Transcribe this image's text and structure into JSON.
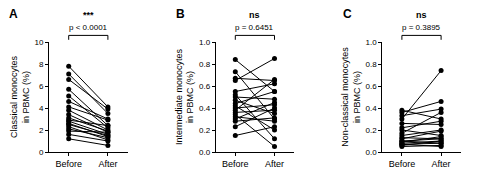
{
  "chart_data": [
    {
      "type": "paired",
      "panel_label": "A",
      "significance": "***",
      "p_text": "p < 0.0001",
      "ylabel": [
        "Classical monocytes",
        "in PBMC (%)"
      ],
      "categories": [
        "Before",
        "After"
      ],
      "color": "#000000",
      "marker": "circle",
      "ylim": [
        0,
        10
      ],
      "yticks": [
        0,
        2,
        4,
        6,
        8,
        10
      ],
      "values": [
        [
          7.8,
          4.1
        ],
        [
          7.1,
          3.5
        ],
        [
          6.6,
          3.9
        ],
        [
          5.7,
          2.4
        ],
        [
          5.1,
          2.2
        ],
        [
          4.6,
          3.0
        ],
        [
          4.1,
          2.9
        ],
        [
          3.8,
          2.0
        ],
        [
          3.4,
          1.8
        ],
        [
          3.1,
          1.9
        ],
        [
          2.9,
          2.4
        ],
        [
          2.8,
          1.6
        ],
        [
          2.6,
          1.4
        ],
        [
          2.5,
          1.5
        ],
        [
          2.3,
          1.1
        ],
        [
          2.1,
          1.3
        ],
        [
          1.9,
          1.8
        ],
        [
          1.6,
          1.0
        ],
        [
          1.2,
          0.6
        ]
      ]
    },
    {
      "type": "paired",
      "panel_label": "B",
      "significance": "ns",
      "p_text": "p = 0.6451",
      "ylabel": [
        "Intermediate monocytes",
        "in PBMC (%)"
      ],
      "categories": [
        "Before",
        "After"
      ],
      "color": "#000000",
      "marker": "circle",
      "ylim": [
        0,
        1.0
      ],
      "yticks": [
        {
          "value": 0,
          "label": "0.0"
        },
        0.2,
        0.4,
        0.6,
        0.8,
        {
          "value": 1,
          "label": "1.0"
        }
      ],
      "values": [
        [
          0.84,
          0.55
        ],
        [
          0.73,
          0.3
        ],
        [
          0.67,
          0.65
        ],
        [
          0.65,
          0.85
        ],
        [
          0.55,
          0.62
        ],
        [
          0.52,
          0.12
        ],
        [
          0.5,
          0.48
        ],
        [
          0.47,
          0.35
        ],
        [
          0.44,
          0.55
        ],
        [
          0.42,
          0.2
        ],
        [
          0.4,
          0.43
        ],
        [
          0.38,
          0.66
        ],
        [
          0.36,
          0.38
        ],
        [
          0.34,
          0.05
        ],
        [
          0.32,
          0.28
        ],
        [
          0.3,
          0.45
        ],
        [
          0.28,
          0.31
        ],
        [
          0.23,
          0.4
        ],
        [
          0.15,
          0.23
        ]
      ]
    },
    {
      "type": "paired",
      "panel_label": "C",
      "significance": "ns",
      "p_text": "p = 0.3895",
      "ylabel": [
        "Non-classical monocytes",
        "in PBMC (%)"
      ],
      "categories": [
        "Before",
        "After"
      ],
      "color": "#000000",
      "marker": "circle",
      "ylim": [
        0,
        1.0
      ],
      "yticks": [
        {
          "value": 0,
          "label": "0.0"
        },
        0.2,
        0.4,
        0.6,
        0.8,
        {
          "value": 1,
          "label": "1.0"
        }
      ],
      "values": [
        [
          0.38,
          0.3
        ],
        [
          0.36,
          0.46
        ],
        [
          0.33,
          0.39
        ],
        [
          0.3,
          0.74
        ],
        [
          0.26,
          0.25
        ],
        [
          0.22,
          0.28
        ],
        [
          0.2,
          0.15
        ],
        [
          0.17,
          0.36
        ],
        [
          0.15,
          0.2
        ],
        [
          0.13,
          0.12
        ],
        [
          0.12,
          0.19
        ],
        [
          0.1,
          0.08
        ],
        [
          0.09,
          0.14
        ],
        [
          0.08,
          0.1
        ],
        [
          0.07,
          0.05
        ],
        [
          0.06,
          0.1
        ],
        [
          0.05,
          0.06
        ],
        [
          0.1,
          0.12
        ],
        [
          0.07,
          0.08
        ]
      ]
    }
  ]
}
